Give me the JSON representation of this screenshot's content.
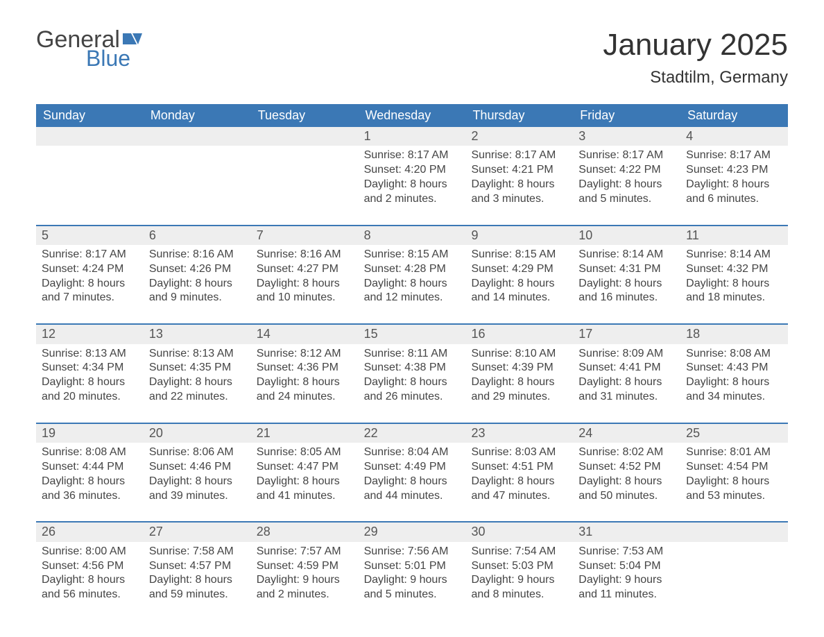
{
  "logo": {
    "text_general": "General",
    "text_blue": "Blue",
    "flag_color": "#3b78b5"
  },
  "title": {
    "month": "January 2025",
    "location": "Stadtilm, Germany"
  },
  "colors": {
    "header_bg": "#3b78b5",
    "header_text": "#ffffff",
    "daynum_bg": "#eeeeee",
    "daynum_text": "#555555",
    "body_text": "#444444",
    "rule": "#3b78b5",
    "page_bg": "#ffffff"
  },
  "fontsizes": {
    "title_month": 44,
    "title_location": 24,
    "dow": 18,
    "daynum": 18,
    "body": 16
  },
  "days_of_week": [
    "Sunday",
    "Monday",
    "Tuesday",
    "Wednesday",
    "Thursday",
    "Friday",
    "Saturday"
  ],
  "weeks": [
    [
      null,
      null,
      null,
      {
        "n": "1",
        "sunrise": "Sunrise: 8:17 AM",
        "sunset": "Sunset: 4:20 PM",
        "day1": "Daylight: 8 hours",
        "day2": "and 2 minutes."
      },
      {
        "n": "2",
        "sunrise": "Sunrise: 8:17 AM",
        "sunset": "Sunset: 4:21 PM",
        "day1": "Daylight: 8 hours",
        "day2": "and 3 minutes."
      },
      {
        "n": "3",
        "sunrise": "Sunrise: 8:17 AM",
        "sunset": "Sunset: 4:22 PM",
        "day1": "Daylight: 8 hours",
        "day2": "and 5 minutes."
      },
      {
        "n": "4",
        "sunrise": "Sunrise: 8:17 AM",
        "sunset": "Sunset: 4:23 PM",
        "day1": "Daylight: 8 hours",
        "day2": "and 6 minutes."
      }
    ],
    [
      {
        "n": "5",
        "sunrise": "Sunrise: 8:17 AM",
        "sunset": "Sunset: 4:24 PM",
        "day1": "Daylight: 8 hours",
        "day2": "and 7 minutes."
      },
      {
        "n": "6",
        "sunrise": "Sunrise: 8:16 AM",
        "sunset": "Sunset: 4:26 PM",
        "day1": "Daylight: 8 hours",
        "day2": "and 9 minutes."
      },
      {
        "n": "7",
        "sunrise": "Sunrise: 8:16 AM",
        "sunset": "Sunset: 4:27 PM",
        "day1": "Daylight: 8 hours",
        "day2": "and 10 minutes."
      },
      {
        "n": "8",
        "sunrise": "Sunrise: 8:15 AM",
        "sunset": "Sunset: 4:28 PM",
        "day1": "Daylight: 8 hours",
        "day2": "and 12 minutes."
      },
      {
        "n": "9",
        "sunrise": "Sunrise: 8:15 AM",
        "sunset": "Sunset: 4:29 PM",
        "day1": "Daylight: 8 hours",
        "day2": "and 14 minutes."
      },
      {
        "n": "10",
        "sunrise": "Sunrise: 8:14 AM",
        "sunset": "Sunset: 4:31 PM",
        "day1": "Daylight: 8 hours",
        "day2": "and 16 minutes."
      },
      {
        "n": "11",
        "sunrise": "Sunrise: 8:14 AM",
        "sunset": "Sunset: 4:32 PM",
        "day1": "Daylight: 8 hours",
        "day2": "and 18 minutes."
      }
    ],
    [
      {
        "n": "12",
        "sunrise": "Sunrise: 8:13 AM",
        "sunset": "Sunset: 4:34 PM",
        "day1": "Daylight: 8 hours",
        "day2": "and 20 minutes."
      },
      {
        "n": "13",
        "sunrise": "Sunrise: 8:13 AM",
        "sunset": "Sunset: 4:35 PM",
        "day1": "Daylight: 8 hours",
        "day2": "and 22 minutes."
      },
      {
        "n": "14",
        "sunrise": "Sunrise: 8:12 AM",
        "sunset": "Sunset: 4:36 PM",
        "day1": "Daylight: 8 hours",
        "day2": "and 24 minutes."
      },
      {
        "n": "15",
        "sunrise": "Sunrise: 8:11 AM",
        "sunset": "Sunset: 4:38 PM",
        "day1": "Daylight: 8 hours",
        "day2": "and 26 minutes."
      },
      {
        "n": "16",
        "sunrise": "Sunrise: 8:10 AM",
        "sunset": "Sunset: 4:39 PM",
        "day1": "Daylight: 8 hours",
        "day2": "and 29 minutes."
      },
      {
        "n": "17",
        "sunrise": "Sunrise: 8:09 AM",
        "sunset": "Sunset: 4:41 PM",
        "day1": "Daylight: 8 hours",
        "day2": "and 31 minutes."
      },
      {
        "n": "18",
        "sunrise": "Sunrise: 8:08 AM",
        "sunset": "Sunset: 4:43 PM",
        "day1": "Daylight: 8 hours",
        "day2": "and 34 minutes."
      }
    ],
    [
      {
        "n": "19",
        "sunrise": "Sunrise: 8:08 AM",
        "sunset": "Sunset: 4:44 PM",
        "day1": "Daylight: 8 hours",
        "day2": "and 36 minutes."
      },
      {
        "n": "20",
        "sunrise": "Sunrise: 8:06 AM",
        "sunset": "Sunset: 4:46 PM",
        "day1": "Daylight: 8 hours",
        "day2": "and 39 minutes."
      },
      {
        "n": "21",
        "sunrise": "Sunrise: 8:05 AM",
        "sunset": "Sunset: 4:47 PM",
        "day1": "Daylight: 8 hours",
        "day2": "and 41 minutes."
      },
      {
        "n": "22",
        "sunrise": "Sunrise: 8:04 AM",
        "sunset": "Sunset: 4:49 PM",
        "day1": "Daylight: 8 hours",
        "day2": "and 44 minutes."
      },
      {
        "n": "23",
        "sunrise": "Sunrise: 8:03 AM",
        "sunset": "Sunset: 4:51 PM",
        "day1": "Daylight: 8 hours",
        "day2": "and 47 minutes."
      },
      {
        "n": "24",
        "sunrise": "Sunrise: 8:02 AM",
        "sunset": "Sunset: 4:52 PM",
        "day1": "Daylight: 8 hours",
        "day2": "and 50 minutes."
      },
      {
        "n": "25",
        "sunrise": "Sunrise: 8:01 AM",
        "sunset": "Sunset: 4:54 PM",
        "day1": "Daylight: 8 hours",
        "day2": "and 53 minutes."
      }
    ],
    [
      {
        "n": "26",
        "sunrise": "Sunrise: 8:00 AM",
        "sunset": "Sunset: 4:56 PM",
        "day1": "Daylight: 8 hours",
        "day2": "and 56 minutes."
      },
      {
        "n": "27",
        "sunrise": "Sunrise: 7:58 AM",
        "sunset": "Sunset: 4:57 PM",
        "day1": "Daylight: 8 hours",
        "day2": "and 59 minutes."
      },
      {
        "n": "28",
        "sunrise": "Sunrise: 7:57 AM",
        "sunset": "Sunset: 4:59 PM",
        "day1": "Daylight: 9 hours",
        "day2": "and 2 minutes."
      },
      {
        "n": "29",
        "sunrise": "Sunrise: 7:56 AM",
        "sunset": "Sunset: 5:01 PM",
        "day1": "Daylight: 9 hours",
        "day2": "and 5 minutes."
      },
      {
        "n": "30",
        "sunrise": "Sunrise: 7:54 AM",
        "sunset": "Sunset: 5:03 PM",
        "day1": "Daylight: 9 hours",
        "day2": "and 8 minutes."
      },
      {
        "n": "31",
        "sunrise": "Sunrise: 7:53 AM",
        "sunset": "Sunset: 5:04 PM",
        "day1": "Daylight: 9 hours",
        "day2": "and 11 minutes."
      },
      null
    ]
  ]
}
